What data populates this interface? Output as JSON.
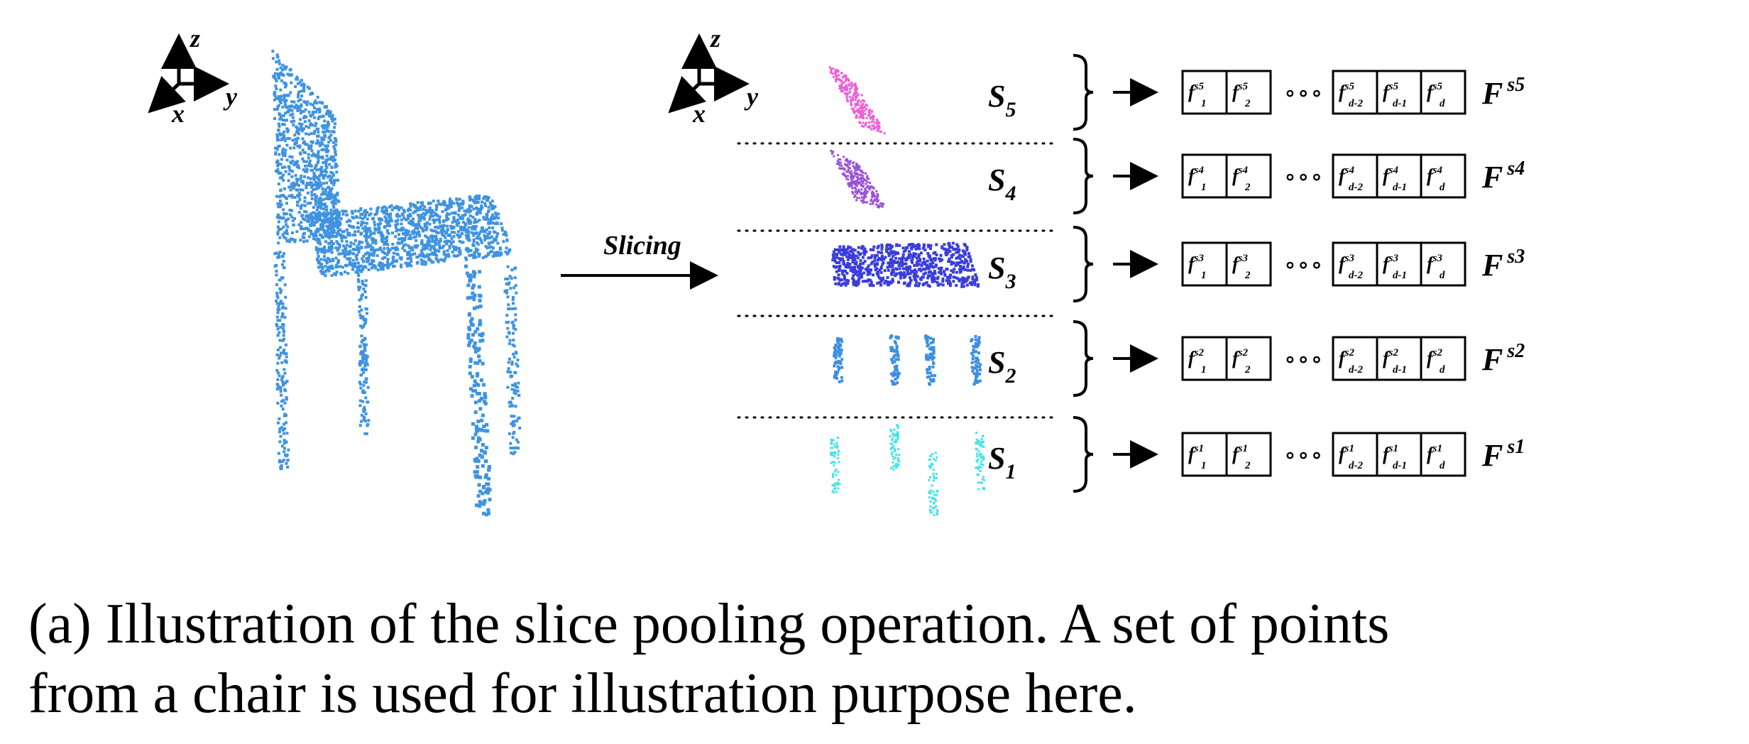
{
  "axes_left": {
    "z": "z",
    "y": "y",
    "x": "x"
  },
  "axes_right": {
    "z": "z",
    "y": "y",
    "x": "x"
  },
  "slicing_label": "Slicing",
  "slices": [
    {
      "name": "S",
      "sub": "5",
      "F": "F",
      "Fsup": "s5",
      "color": "#ec5ed6",
      "cells": [
        {
          "sup": "s5",
          "sub": "1"
        },
        {
          "sup": "s5",
          "sub": "2"
        },
        {
          "sup": "s5",
          "sub": "d-2"
        },
        {
          "sup": "s5",
          "sub": "d-1"
        },
        {
          "sup": "s5",
          "sub": "d"
        }
      ]
    },
    {
      "name": "S",
      "sub": "4",
      "F": "F",
      "Fsup": "s4",
      "color": "#9a52d6",
      "cells": [
        {
          "sup": "s4",
          "sub": "1"
        },
        {
          "sup": "s4",
          "sub": "2"
        },
        {
          "sup": "s4",
          "sub": "d-2"
        },
        {
          "sup": "s4",
          "sub": "d-1"
        },
        {
          "sup": "s4",
          "sub": "d"
        }
      ]
    },
    {
      "name": "S",
      "sub": "3",
      "F": "F",
      "Fsup": "s3",
      "color": "#3a3ddc",
      "cells": [
        {
          "sup": "s3",
          "sub": "1"
        },
        {
          "sup": "s3",
          "sub": "2"
        },
        {
          "sup": "s3",
          "sub": "d-2"
        },
        {
          "sup": "s3",
          "sub": "d-1"
        },
        {
          "sup": "s3",
          "sub": "d"
        }
      ]
    },
    {
      "name": "S",
      "sub": "2",
      "F": "F",
      "Fsup": "s2",
      "color": "#3d8fe0",
      "cells": [
        {
          "sup": "s2",
          "sub": "1"
        },
        {
          "sup": "s2",
          "sub": "2"
        },
        {
          "sup": "s2",
          "sub": "d-2"
        },
        {
          "sup": "s2",
          "sub": "d-1"
        },
        {
          "sup": "s2",
          "sub": "d"
        }
      ]
    },
    {
      "name": "S",
      "sub": "1",
      "F": "F",
      "Fsup": "s1",
      "color": "#45e3e8",
      "cells": [
        {
          "sup": "s1",
          "sub": "1"
        },
        {
          "sup": "s1",
          "sub": "2"
        },
        {
          "sup": "s1",
          "sub": "d-2"
        },
        {
          "sup": "s1",
          "sub": "d-1"
        },
        {
          "sup": "s1",
          "sub": "d"
        }
      ]
    }
  ],
  "ellipsis": "∘∘∘",
  "chair_color": "#3f93e0",
  "caption": {
    "line1": "(a) Illustration of the slice pooling operation.  A set of points",
    "line2": "from a chair is used for illustration purpose here."
  }
}
